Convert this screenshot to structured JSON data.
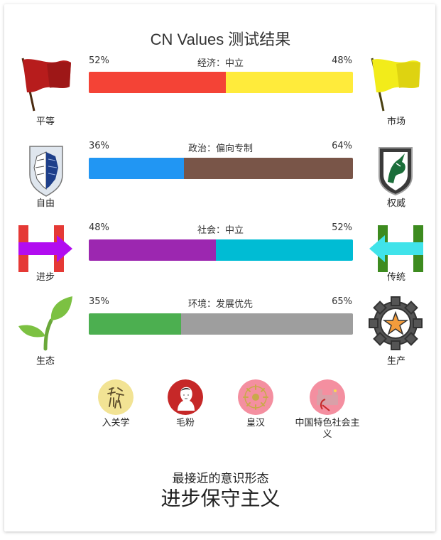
{
  "title": "CN Values 测试结果",
  "axes": [
    {
      "name": "经济：中立",
      "left_label": "平等",
      "right_label": "市场",
      "left_pct": "52%",
      "right_pct": "48%",
      "left_value": 52,
      "right_value": 48,
      "left_color": "#f44336",
      "right_color": "#ffeb3b",
      "left_icon": "red-flag-icon",
      "right_icon": "yellow-flag-icon"
    },
    {
      "name": "政治：偏向专制",
      "left_label": "自由",
      "right_label": "权威",
      "left_pct": "36%",
      "right_pct": "64%",
      "left_value": 36,
      "right_value": 64,
      "left_color": "#2196f3",
      "right_color": "#795548",
      "left_icon": "wings-emblem-icon",
      "right_icon": "unicorn-emblem-icon"
    },
    {
      "name": "社会：中立",
      "left_label": "进步",
      "right_label": "传统",
      "left_pct": "48%",
      "right_pct": "52%",
      "left_value": 48,
      "right_value": 52,
      "left_color": "#9c27b0",
      "right_color": "#00bcd4",
      "left_icon": "h-arrow-right-icon",
      "right_icon": "h-arrow-left-icon"
    },
    {
      "name": "环境：发展优先",
      "left_label": "生态",
      "right_label": "生产",
      "left_pct": "35%",
      "right_pct": "65%",
      "left_value": 35,
      "right_value": 65,
      "left_color": "#4caf50",
      "right_color": "#9e9e9e",
      "left_icon": "sprout-icon",
      "right_icon": "gear-star-icon"
    }
  ],
  "matches": [
    {
      "label": "入关学",
      "color": "#f2e394",
      "icon": "calligraphy-icon"
    },
    {
      "label": "毛粉",
      "color": "#c62828",
      "icon": "portrait-icon"
    },
    {
      "label": "皇汉",
      "color": "#f48fa0",
      "icon": "sun-emblem-icon"
    },
    {
      "label": "中国特色社会主义",
      "color": "#f48fa0",
      "icon": "hammer-sickle-icon"
    }
  ],
  "closest_caption": "最接近的意识形态",
  "closest_ideology": "进步保守主义"
}
